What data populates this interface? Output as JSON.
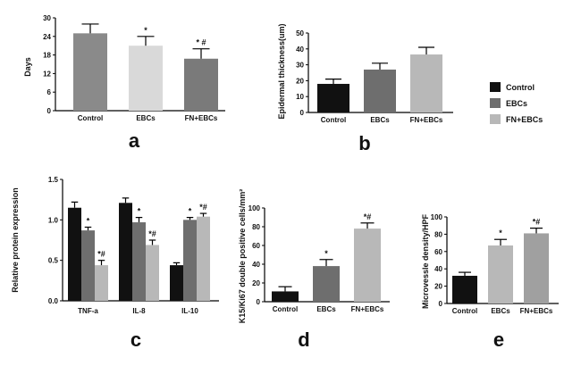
{
  "colors": {
    "dark": "#111111",
    "mid": "#6e6e6e",
    "light": "#b8b8b8",
    "vlight": "#d9d9d9",
    "axis": "#000000"
  },
  "legend": {
    "items": [
      {
        "label": "Control",
        "color": "#111111"
      },
      {
        "label": "EBCs",
        "color": "#6e6e6e"
      },
      {
        "label": "FN+EBCs",
        "color": "#b8b8b8"
      }
    ]
  },
  "chart_data": [
    {
      "panel": "a",
      "type": "bar",
      "ylabel": "Days",
      "ylim": [
        0,
        30
      ],
      "yticks": [
        "0",
        "6",
        "12",
        "18",
        "24",
        "30"
      ],
      "categories": [
        "Control",
        "EBCs",
        "FN+EBCs"
      ],
      "values": [
        25,
        21,
        16.8
      ],
      "errors": [
        3,
        3,
        3.2
      ],
      "markers": [
        "",
        "*",
        "* #"
      ],
      "colors": [
        "#8a8a8a",
        "#d9d9d9",
        "#7a7a7a"
      ]
    },
    {
      "panel": "b",
      "type": "bar",
      "ylabel": "Epidermal thickness(um)",
      "ylim": [
        0,
        50
      ],
      "yticks": [
        "0",
        "10",
        "20",
        "30",
        "40",
        "50"
      ],
      "categories": [
        "Control",
        "EBCs",
        "FN+EBCs"
      ],
      "values": [
        18,
        27,
        36.5
      ],
      "errors": [
        3,
        4,
        4.5
      ],
      "markers": [
        "",
        "",
        ""
      ],
      "colors": [
        "#111111",
        "#6e6e6e",
        "#b8b8b8"
      ]
    },
    {
      "panel": "c",
      "type": "bar",
      "ylabel": "Relative protein expression",
      "ylim": [
        0,
        1.5
      ],
      "yticks": [
        "0.0",
        "0.5",
        "1.0",
        "1.5"
      ],
      "categories": [
        "TNF-a",
        "IL-8",
        "IL-10"
      ],
      "series": [
        {
          "values": [
            1.15,
            1.21,
            0.44
          ],
          "errors": [
            0.07,
            0.06,
            0.03
          ],
          "markers": [
            "",
            "",
            ""
          ]
        },
        {
          "values": [
            0.87,
            0.97,
            1.0
          ],
          "errors": [
            0.04,
            0.06,
            0.03
          ],
          "markers": [
            "*",
            "*",
            "*"
          ]
        },
        {
          "values": [
            0.44,
            0.69,
            1.04
          ],
          "errors": [
            0.06,
            0.06,
            0.04
          ],
          "markers": [
            "*#",
            "*#",
            "*#"
          ]
        }
      ]
    },
    {
      "panel": "d",
      "type": "bar",
      "ylabel": "K15/Ki67 double positive cells/mm²",
      "ylim": [
        0,
        100
      ],
      "yticks": [
        "0",
        "20",
        "40",
        "60",
        "80",
        "100"
      ],
      "categories": [
        "Control",
        "EBCs",
        "FN+EBCs"
      ],
      "values": [
        11,
        38,
        78
      ],
      "errors": [
        5,
        7,
        6
      ],
      "markers": [
        "",
        "*",
        "*#"
      ],
      "colors": [
        "#111111",
        "#6e6e6e",
        "#b8b8b8"
      ]
    },
    {
      "panel": "e",
      "type": "bar",
      "ylabel": "Microvessle density/HPF",
      "ylim": [
        0,
        100
      ],
      "yticks": [
        "0",
        "20",
        "40",
        "60",
        "80",
        "100"
      ],
      "categories": [
        "Control",
        "EBCs",
        "FN+EBCs"
      ],
      "values": [
        32,
        67,
        81
      ],
      "errors": [
        4,
        7,
        6
      ],
      "markers": [
        "",
        "*",
        "*#"
      ],
      "colors": [
        "#111111",
        "#b8b8b8",
        "#a0a0a0"
      ]
    }
  ]
}
